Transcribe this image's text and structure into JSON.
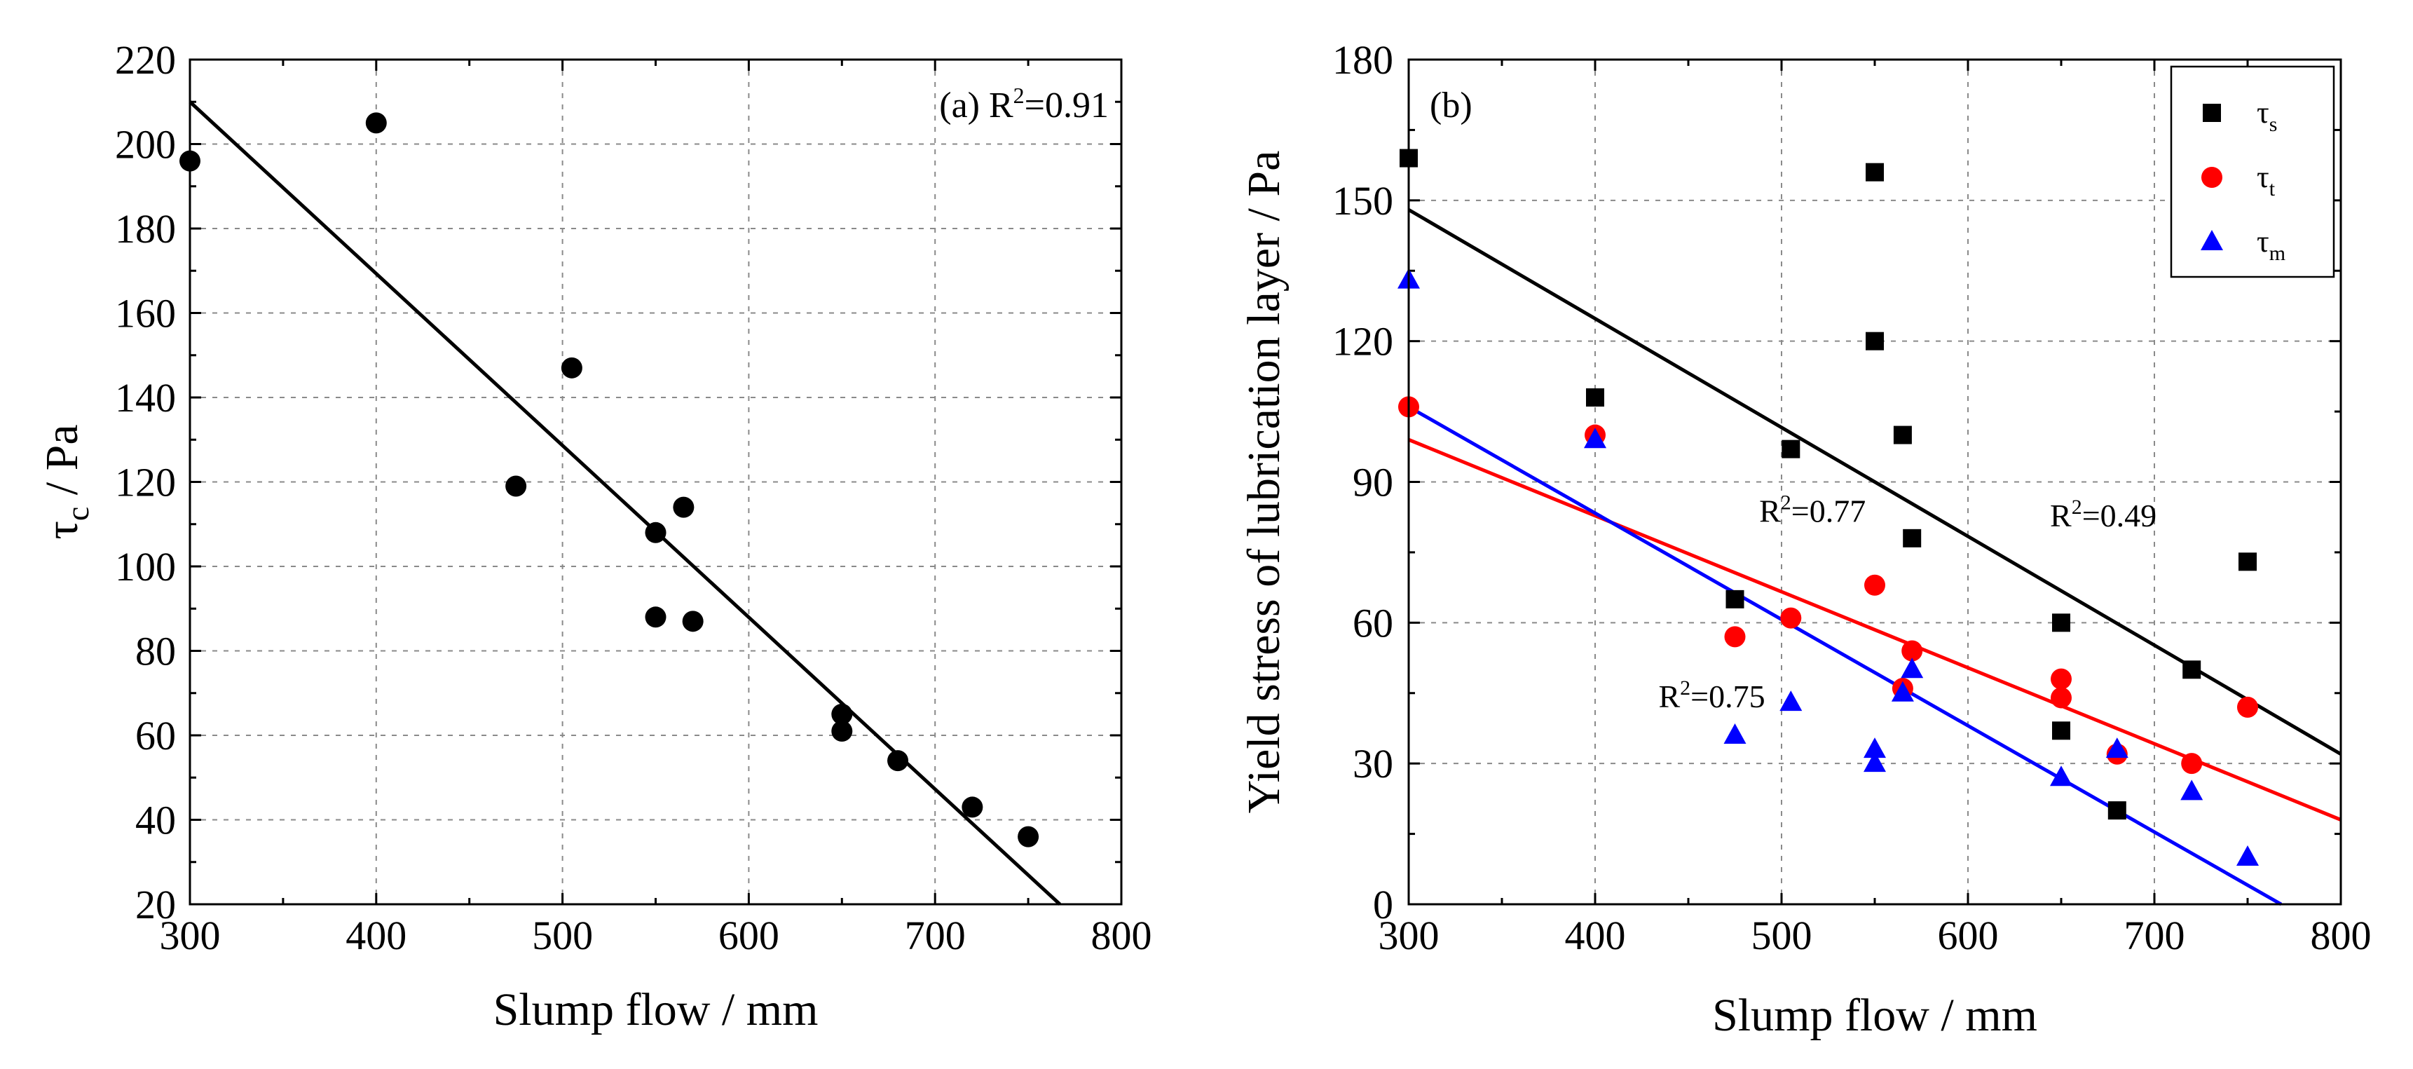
{
  "colors": {
    "black": "#000000",
    "red": "#ff0000",
    "blue": "#0000ff",
    "grid": "#8a8a8a"
  },
  "chart_data": [
    {
      "id": "a",
      "type": "scatter",
      "panel_label": "(a)",
      "r2_text": "R",
      "r2_sup": "2",
      "r2_value": "=0.91",
      "xlabel": "Slump flow / mm",
      "ylabel_main": "τ",
      "ylabel_sub": "c",
      "ylabel_unit": " / Pa",
      "xlim": [
        300,
        800
      ],
      "ylim": [
        20,
        220
      ],
      "xticks": [
        300,
        400,
        500,
        600,
        700,
        800
      ],
      "yticks": [
        20,
        40,
        60,
        80,
        100,
        120,
        140,
        160,
        180,
        200,
        220
      ],
      "grid": true,
      "series": [
        {
          "name": "τc",
          "marker": "circle",
          "color": "#000000",
          "x": [
            300,
            400,
            475,
            505,
            550,
            550,
            565,
            570,
            650,
            650,
            680,
            720,
            750
          ],
          "y": [
            196,
            205,
            119,
            147,
            108,
            88,
            114,
            87,
            65,
            61,
            54,
            43,
            36
          ],
          "fit": {
            "x": [
              300,
              767
            ],
            "y": [
              210,
              20
            ]
          }
        }
      ]
    },
    {
      "id": "b",
      "type": "scatter",
      "panel_label": "(b)",
      "xlabel": "Slump flow / mm",
      "ylabel": "Yield stress of lubrication layer / Pa",
      "xlim": [
        300,
        800
      ],
      "ylim": [
        0,
        180
      ],
      "xticks": [
        300,
        400,
        500,
        600,
        700,
        800
      ],
      "yticks": [
        0,
        30,
        60,
        90,
        120,
        150,
        180
      ],
      "grid": true,
      "legend_position": "top-right",
      "series": [
        {
          "name": "τs",
          "legend_main": "τ",
          "legend_sub": "s",
          "marker": "square",
          "color": "#000000",
          "x": [
            300,
            400,
            475,
            505,
            550,
            550,
            565,
            570,
            650,
            650,
            680,
            720,
            750
          ],
          "y": [
            159,
            108,
            65,
            97,
            156,
            120,
            100,
            78,
            60,
            37,
            20,
            50,
            73
          ],
          "fit": {
            "x": [
              300,
              800
            ],
            "y": [
              148,
              32
            ]
          },
          "r2_text": "R",
          "r2_sup": "2",
          "r2_value": "=0.49"
        },
        {
          "name": "τt",
          "legend_main": "τ",
          "legend_sub": "t",
          "marker": "circle",
          "color": "#ff0000",
          "x": [
            300,
            400,
            475,
            505,
            550,
            565,
            570,
            650,
            650,
            680,
            720,
            750
          ],
          "y": [
            106,
            100,
            57,
            61,
            68,
            46,
            54,
            48,
            44,
            32,
            30,
            42
          ],
          "fit": {
            "x": [
              300,
              800
            ],
            "y": [
              99,
              18
            ]
          },
          "r2_text": "R",
          "r2_sup": "2",
          "r2_value": "=0.77"
        },
        {
          "name": "τm",
          "legend_main": "τ",
          "legend_sub": "m",
          "marker": "triangle",
          "color": "#0000ff",
          "x": [
            300,
            400,
            475,
            505,
            550,
            550,
            565,
            570,
            650,
            680,
            720,
            750
          ],
          "y": [
            133,
            99,
            36,
            43,
            33,
            30,
            45,
            50,
            27,
            33,
            24,
            10
          ],
          "fit": {
            "x": [
              300,
              768
            ],
            "y": [
              106,
              0
            ]
          },
          "r2_text": "R",
          "r2_sup": "2",
          "r2_value": "=0.75"
        }
      ]
    }
  ]
}
